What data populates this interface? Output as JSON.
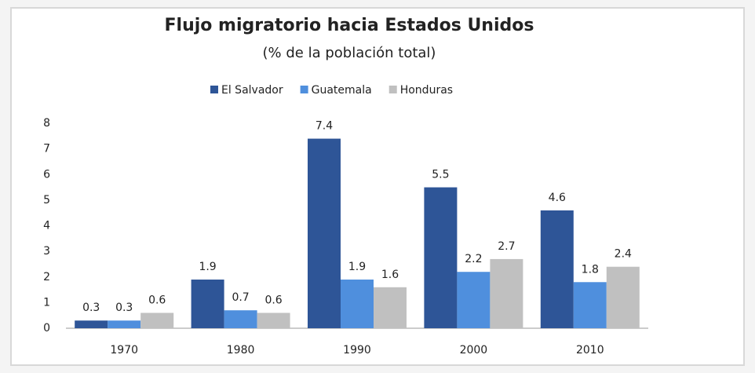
{
  "chart_data": {
    "type": "bar",
    "title": "Flujo migratorio hacia Estados Unidos",
    "subtitle": "(% de la población total)",
    "categories": [
      "1970",
      "1980",
      "1990",
      "2000",
      "2010"
    ],
    "series": [
      {
        "name": "El Salvador",
        "color": "#2e5597",
        "values": [
          0.3,
          1.9,
          7.4,
          5.5,
          4.6
        ]
      },
      {
        "name": "Guatemala",
        "color": "#4f8fdd",
        "values": [
          0.3,
          0.7,
          1.9,
          2.2,
          1.8
        ]
      },
      {
        "name": "Honduras",
        "color": "#c0c0c0",
        "values": [
          0.6,
          0.6,
          1.6,
          2.7,
          2.4
        ]
      }
    ],
    "ylim": [
      0,
      8
    ],
    "yticks": [
      0,
      1,
      2,
      3,
      4,
      5,
      6,
      7,
      8
    ],
    "grid": false,
    "legend": "top"
  }
}
